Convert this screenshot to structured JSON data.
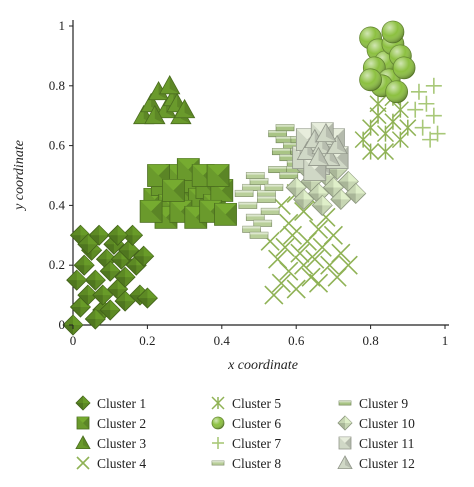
{
  "chart_data": {
    "type": "scatter",
    "xlabel": "x coordinate",
    "ylabel": "y coordinate",
    "xlim": [
      0,
      1
    ],
    "ylim": [
      0,
      1
    ],
    "x_ticks": [
      "0",
      "0.2",
      "0.4",
      "0.6",
      "0.8",
      "1"
    ],
    "y_ticks": [
      "0",
      "0.2",
      "0.4",
      "0.6",
      "0.8",
      "1"
    ],
    "grid": false,
    "legend_position": "bottom",
    "colors": {
      "dark": "#5a7f1e",
      "mid": "#7aa83a",
      "light": "#9fc26a",
      "pale": "#bfd6a0",
      "gray": "#c9d3bf"
    },
    "series": [
      {
        "name": "Cluster 1",
        "marker": "diamond",
        "color": "#5d8a24",
        "points": [
          [
            0.0,
            0.0
          ],
          [
            0.02,
            0.06
          ],
          [
            0.04,
            0.1
          ],
          [
            0.06,
            0.15
          ],
          [
            0.08,
            0.05
          ],
          [
            0.03,
            0.2
          ],
          [
            0.05,
            0.25
          ],
          [
            0.07,
            0.3
          ],
          [
            0.02,
            0.3
          ],
          [
            0.09,
            0.22
          ],
          [
            0.1,
            0.18
          ],
          [
            0.12,
            0.12
          ],
          [
            0.11,
            0.27
          ],
          [
            0.13,
            0.22
          ],
          [
            0.14,
            0.16
          ],
          [
            0.15,
            0.25
          ],
          [
            0.17,
            0.2
          ],
          [
            0.19,
            0.23
          ],
          [
            0.16,
            0.3
          ],
          [
            0.18,
            0.1
          ],
          [
            0.2,
            0.09
          ],
          [
            0.06,
            0.02
          ],
          [
            0.08,
            0.1
          ],
          [
            0.04,
            0.27
          ],
          [
            0.1,
            0.05
          ],
          [
            0.12,
            0.3
          ],
          [
            0.14,
            0.08
          ],
          [
            0.01,
            0.15
          ]
        ]
      },
      {
        "name": "Cluster 2",
        "marker": "square-pyramid",
        "color": "#6a9a2c",
        "points": [
          [
            0.22,
            0.42
          ],
          [
            0.24,
            0.47
          ],
          [
            0.26,
            0.4
          ],
          [
            0.28,
            0.5
          ],
          [
            0.3,
            0.44
          ],
          [
            0.32,
            0.48
          ],
          [
            0.34,
            0.42
          ],
          [
            0.36,
            0.46
          ],
          [
            0.38,
            0.4
          ],
          [
            0.4,
            0.45
          ],
          [
            0.25,
            0.36
          ],
          [
            0.29,
            0.38
          ],
          [
            0.33,
            0.36
          ],
          [
            0.37,
            0.38
          ],
          [
            0.41,
            0.37
          ],
          [
            0.23,
            0.5
          ],
          [
            0.31,
            0.52
          ],
          [
            0.35,
            0.5
          ],
          [
            0.27,
            0.45
          ],
          [
            0.39,
            0.5
          ],
          [
            0.21,
            0.38
          ]
        ]
      },
      {
        "name": "Cluster 3",
        "marker": "triangle",
        "color": "#6a9a2c",
        "points": [
          [
            0.19,
            0.7
          ],
          [
            0.21,
            0.74
          ],
          [
            0.23,
            0.78
          ],
          [
            0.25,
            0.72
          ],
          [
            0.27,
            0.76
          ],
          [
            0.29,
            0.7
          ],
          [
            0.22,
            0.7
          ],
          [
            0.26,
            0.8
          ],
          [
            0.28,
            0.74
          ],
          [
            0.3,
            0.72
          ]
        ]
      },
      {
        "name": "Cluster 4",
        "marker": "x",
        "color": "#8fb255",
        "points": [
          [
            0.54,
            0.1
          ],
          [
            0.56,
            0.14
          ],
          [
            0.58,
            0.18
          ],
          [
            0.6,
            0.12
          ],
          [
            0.62,
            0.2
          ],
          [
            0.64,
            0.16
          ],
          [
            0.55,
            0.22
          ],
          [
            0.57,
            0.26
          ],
          [
            0.59,
            0.3
          ],
          [
            0.61,
            0.24
          ],
          [
            0.63,
            0.28
          ],
          [
            0.65,
            0.22
          ],
          [
            0.67,
            0.26
          ],
          [
            0.69,
            0.2
          ],
          [
            0.66,
            0.32
          ],
          [
            0.68,
            0.36
          ],
          [
            0.7,
            0.3
          ],
          [
            0.72,
            0.24
          ],
          [
            0.58,
            0.34
          ],
          [
            0.62,
            0.38
          ],
          [
            0.64,
            0.42
          ],
          [
            0.6,
            0.44
          ],
          [
            0.56,
            0.4
          ],
          [
            0.53,
            0.28
          ],
          [
            0.71,
            0.16
          ],
          [
            0.66,
            0.14
          ],
          [
            0.74,
            0.2
          ]
        ]
      },
      {
        "name": "Cluster 5",
        "marker": "asterisk",
        "color": "#8fb255",
        "points": [
          [
            0.78,
            0.62
          ],
          [
            0.8,
            0.66
          ],
          [
            0.82,
            0.7
          ],
          [
            0.84,
            0.64
          ],
          [
            0.86,
            0.68
          ],
          [
            0.88,
            0.62
          ],
          [
            0.8,
            0.58
          ],
          [
            0.84,
            0.58
          ],
          [
            0.88,
            0.72
          ],
          [
            0.9,
            0.66
          ],
          [
            0.82,
            0.74
          ],
          [
            0.86,
            0.76
          ]
        ]
      },
      {
        "name": "Cluster 6",
        "marker": "sphere",
        "color": "#8cc040",
        "points": [
          [
            0.8,
            0.96
          ],
          [
            0.82,
            0.92
          ],
          [
            0.84,
            0.88
          ],
          [
            0.86,
            0.94
          ],
          [
            0.88,
            0.9
          ],
          [
            0.81,
            0.86
          ],
          [
            0.85,
            0.82
          ],
          [
            0.89,
            0.86
          ],
          [
            0.83,
            0.8
          ],
          [
            0.87,
            0.78
          ],
          [
            0.8,
            0.82
          ],
          [
            0.86,
            0.98
          ]
        ]
      },
      {
        "name": "Cluster 7",
        "marker": "plus",
        "color": "#a8c878",
        "points": [
          [
            0.93,
            0.78
          ],
          [
            0.95,
            0.74
          ],
          [
            0.97,
            0.7
          ],
          [
            0.94,
            0.66
          ],
          [
            0.96,
            0.62
          ],
          [
            0.98,
            0.64
          ],
          [
            0.92,
            0.72
          ],
          [
            0.97,
            0.8
          ]
        ]
      },
      {
        "name": "Cluster 8",
        "marker": "bar",
        "color": "#b9cf9a",
        "points": [
          [
            0.48,
            0.46
          ],
          [
            0.5,
            0.48
          ],
          [
            0.52,
            0.44
          ],
          [
            0.47,
            0.4
          ],
          [
            0.49,
            0.36
          ],
          [
            0.51,
            0.34
          ],
          [
            0.53,
            0.38
          ],
          [
            0.48,
            0.32
          ],
          [
            0.5,
            0.3
          ],
          [
            0.52,
            0.42
          ],
          [
            0.46,
            0.44
          ],
          [
            0.54,
            0.46
          ],
          [
            0.49,
            0.5
          ]
        ]
      },
      {
        "name": "Cluster 9",
        "marker": "bar",
        "color": "#a9c485",
        "points": [
          [
            0.55,
            0.64
          ],
          [
            0.57,
            0.62
          ],
          [
            0.59,
            0.6
          ],
          [
            0.56,
            0.58
          ],
          [
            0.58,
            0.56
          ],
          [
            0.6,
            0.54
          ],
          [
            0.57,
            0.66
          ],
          [
            0.59,
            0.52
          ],
          [
            0.61,
            0.58
          ],
          [
            0.55,
            0.52
          ],
          [
            0.58,
            0.5
          ],
          [
            0.61,
            0.62
          ]
        ]
      },
      {
        "name": "Cluster 10",
        "marker": "diamond",
        "color": "#c7d6b3",
        "points": [
          [
            0.6,
            0.46
          ],
          [
            0.62,
            0.42
          ],
          [
            0.64,
            0.48
          ],
          [
            0.66,
            0.44
          ],
          [
            0.68,
            0.5
          ],
          [
            0.7,
            0.46
          ],
          [
            0.72,
            0.42
          ],
          [
            0.74,
            0.48
          ],
          [
            0.76,
            0.44
          ],
          [
            0.63,
            0.52
          ],
          [
            0.67,
            0.4
          ],
          [
            0.71,
            0.52
          ]
        ]
      },
      {
        "name": "Cluster 11",
        "marker": "square-pyramid",
        "color": "#d0d8c6",
        "points": [
          [
            0.62,
            0.56
          ],
          [
            0.64,
            0.6
          ],
          [
            0.66,
            0.54
          ],
          [
            0.68,
            0.58
          ],
          [
            0.7,
            0.62
          ],
          [
            0.63,
            0.62
          ],
          [
            0.67,
            0.64
          ],
          [
            0.71,
            0.56
          ],
          [
            0.65,
            0.52
          ]
        ]
      },
      {
        "name": "Cluster 12",
        "marker": "triangle",
        "color": "#d0d8c6",
        "points": [
          [
            0.63,
            0.58
          ],
          [
            0.65,
            0.62
          ],
          [
            0.67,
            0.6
          ],
          [
            0.69,
            0.56
          ],
          [
            0.71,
            0.6
          ],
          [
            0.66,
            0.56
          ],
          [
            0.68,
            0.64
          ]
        ]
      }
    ]
  }
}
